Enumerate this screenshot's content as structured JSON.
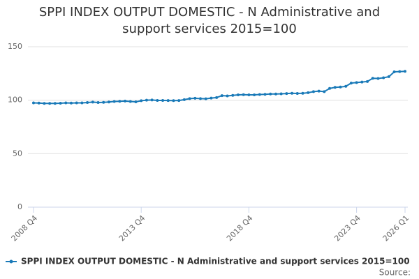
{
  "chart_data": {
    "type": "line",
    "title": "SPPI INDEX OUTPUT DOMESTIC - N Administrative and support services 2015=100",
    "source": "Source:",
    "categories": [
      "2008 Q4",
      null,
      null,
      null,
      null,
      null,
      null,
      null,
      null,
      null,
      null,
      null,
      null,
      null,
      null,
      null,
      null,
      null,
      null,
      null,
      "2013 Q4",
      null,
      null,
      null,
      null,
      null,
      null,
      null,
      null,
      null,
      null,
      null,
      null,
      null,
      null,
      null,
      null,
      null,
      null,
      null,
      "2018 Q4",
      null,
      null,
      null,
      null,
      null,
      null,
      null,
      null,
      null,
      null,
      null,
      null,
      null,
      null,
      null,
      null,
      null,
      null,
      null,
      "2023 Q4",
      null,
      null,
      null,
      null,
      null,
      null,
      null,
      null,
      "2026 Q1"
    ],
    "series": [
      {
        "name": "SPPI INDEX OUTPUT DOMESTIC - N Administrative and support services 2015=100",
        "color": "#1a7ab8",
        "values": [
          97.5,
          97.3,
          97.0,
          97.0,
          97.0,
          97.2,
          97.5,
          97.3,
          97.5,
          97.5,
          97.8,
          98.2,
          97.8,
          98.0,
          98.3,
          98.8,
          99.0,
          99.2,
          98.8,
          98.5,
          99.5,
          100.0,
          100.2,
          99.8,
          99.8,
          99.7,
          99.6,
          99.7,
          100.5,
          101.5,
          101.8,
          101.5,
          101.3,
          102.0,
          102.5,
          104.3,
          104.0,
          104.5,
          105.0,
          105.2,
          105.0,
          105.0,
          105.3,
          105.5,
          105.8,
          105.8,
          106.0,
          106.2,
          106.5,
          106.3,
          106.5,
          107.0,
          108.0,
          108.5,
          108.0,
          111.0,
          112.0,
          112.3,
          113.0,
          116.0,
          116.5,
          117.0,
          117.5,
          120.5,
          120.3,
          121.0,
          122.0,
          126.5,
          126.8,
          127.0
        ]
      }
    ],
    "ylim": [
      0,
      150
    ],
    "yticks": [
      0,
      50,
      100,
      150
    ],
    "grid": true,
    "legend": "bottom"
  }
}
